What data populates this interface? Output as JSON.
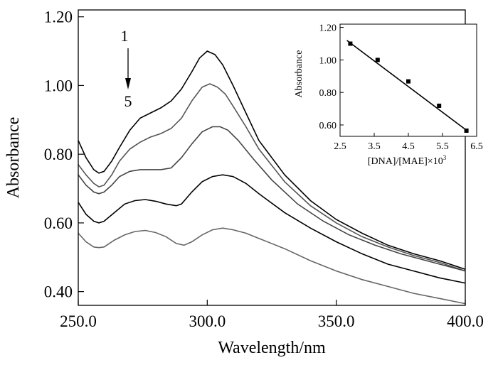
{
  "chart_data": [
    {
      "type": "line",
      "xlabel": "Wavelength/nm",
      "ylabel": "Absorbance",
      "xlim": [
        250,
        400
      ],
      "ylim": [
        0.36,
        1.22
      ],
      "x_ticks": [
        "250.0",
        "300.0",
        "350.0",
        "400.0"
      ],
      "y_ticks": [
        "0.40",
        "0.60",
        "0.80",
        "1.00",
        "1.20"
      ],
      "grid": false,
      "annotation": {
        "start_label": "1",
        "end_label": "5"
      },
      "series": [
        {
          "color": "#000000",
          "points": [
            [
              250,
              0.84
            ],
            [
              253,
              0.79
            ],
            [
              256,
              0.755
            ],
            [
              258,
              0.745
            ],
            [
              260,
              0.75
            ],
            [
              263,
              0.78
            ],
            [
              266,
              0.82
            ],
            [
              270,
              0.87
            ],
            [
              274,
              0.905
            ],
            [
              278,
              0.92
            ],
            [
              282,
              0.935
            ],
            [
              286,
              0.955
            ],
            [
              290,
              0.99
            ],
            [
              294,
              1.04
            ],
            [
              297,
              1.08
            ],
            [
              300,
              1.1
            ],
            [
              303,
              1.09
            ],
            [
              306,
              1.06
            ],
            [
              310,
              1.0
            ],
            [
              315,
              0.92
            ],
            [
              320,
              0.84
            ],
            [
              330,
              0.74
            ],
            [
              340,
              0.665
            ],
            [
              350,
              0.61
            ],
            [
              360,
              0.57
            ],
            [
              370,
              0.535
            ],
            [
              380,
              0.51
            ],
            [
              390,
              0.49
            ],
            [
              400,
              0.465
            ]
          ]
        },
        {
          "color": "#555555",
          "points": [
            [
              250,
              0.77
            ],
            [
              253,
              0.74
            ],
            [
              256,
              0.715
            ],
            [
              258,
              0.705
            ],
            [
              260,
              0.71
            ],
            [
              263,
              0.74
            ],
            [
              266,
              0.78
            ],
            [
              270,
              0.815
            ],
            [
              274,
              0.835
            ],
            [
              278,
              0.85
            ],
            [
              282,
              0.86
            ],
            [
              286,
              0.875
            ],
            [
              290,
              0.905
            ],
            [
              294,
              0.955
            ],
            [
              298,
              0.995
            ],
            [
              301,
              1.005
            ],
            [
              304,
              0.995
            ],
            [
              307,
              0.975
            ],
            [
              310,
              0.94
            ],
            [
              315,
              0.88
            ],
            [
              320,
              0.815
            ],
            [
              330,
              0.72
            ],
            [
              340,
              0.65
            ],
            [
              350,
              0.6
            ],
            [
              360,
              0.56
            ],
            [
              370,
              0.53
            ],
            [
              380,
              0.505
            ],
            [
              390,
              0.485
            ],
            [
              400,
              0.46
            ]
          ]
        },
        {
          "color": "#444444",
          "points": [
            [
              250,
              0.74
            ],
            [
              253,
              0.71
            ],
            [
              256,
              0.69
            ],
            [
              258,
              0.685
            ],
            [
              260,
              0.69
            ],
            [
              263,
              0.71
            ],
            [
              266,
              0.735
            ],
            [
              270,
              0.75
            ],
            [
              274,
              0.755
            ],
            [
              278,
              0.755
            ],
            [
              282,
              0.755
            ],
            [
              286,
              0.76
            ],
            [
              290,
              0.79
            ],
            [
              294,
              0.83
            ],
            [
              298,
              0.865
            ],
            [
              302,
              0.88
            ],
            [
              305,
              0.88
            ],
            [
              308,
              0.87
            ],
            [
              312,
              0.84
            ],
            [
              318,
              0.785
            ],
            [
              325,
              0.725
            ],
            [
              335,
              0.655
            ],
            [
              345,
              0.605
            ],
            [
              355,
              0.565
            ],
            [
              365,
              0.535
            ],
            [
              375,
              0.51
            ],
            [
              385,
              0.49
            ],
            [
              400,
              0.46
            ]
          ]
        },
        {
          "color": "#000000",
          "points": [
            [
              250,
              0.66
            ],
            [
              253,
              0.625
            ],
            [
              256,
              0.605
            ],
            [
              258,
              0.6
            ],
            [
              260,
              0.605
            ],
            [
              264,
              0.63
            ],
            [
              268,
              0.655
            ],
            [
              272,
              0.665
            ],
            [
              276,
              0.668
            ],
            [
              280,
              0.663
            ],
            [
              284,
              0.655
            ],
            [
              288,
              0.65
            ],
            [
              290,
              0.655
            ],
            [
              294,
              0.69
            ],
            [
              298,
              0.72
            ],
            [
              302,
              0.735
            ],
            [
              306,
              0.74
            ],
            [
              310,
              0.735
            ],
            [
              315,
              0.715
            ],
            [
              320,
              0.685
            ],
            [
              330,
              0.63
            ],
            [
              340,
              0.585
            ],
            [
              350,
              0.545
            ],
            [
              360,
              0.51
            ],
            [
              370,
              0.48
            ],
            [
              380,
              0.46
            ],
            [
              390,
              0.44
            ],
            [
              400,
              0.425
            ]
          ]
        },
        {
          "color": "#666666",
          "points": [
            [
              250,
              0.57
            ],
            [
              253,
              0.545
            ],
            [
              256,
              0.53
            ],
            [
              258,
              0.528
            ],
            [
              260,
              0.53
            ],
            [
              264,
              0.55
            ],
            [
              268,
              0.565
            ],
            [
              272,
              0.575
            ],
            [
              276,
              0.578
            ],
            [
              280,
              0.572
            ],
            [
              284,
              0.56
            ],
            [
              288,
              0.54
            ],
            [
              291,
              0.535
            ],
            [
              294,
              0.545
            ],
            [
              298,
              0.565
            ],
            [
              302,
              0.58
            ],
            [
              306,
              0.585
            ],
            [
              310,
              0.58
            ],
            [
              315,
              0.57
            ],
            [
              320,
              0.555
            ],
            [
              330,
              0.525
            ],
            [
              340,
              0.49
            ],
            [
              350,
              0.46
            ],
            [
              360,
              0.435
            ],
            [
              370,
              0.415
            ],
            [
              380,
              0.395
            ],
            [
              390,
              0.38
            ],
            [
              400,
              0.365
            ]
          ]
        }
      ]
    },
    {
      "type": "scatter",
      "xlabel": "[DNA]/[MAE]×10",
      "xlabel_sup": "3",
      "ylabel": "Absorbance",
      "xlim": [
        2.5,
        6.5
      ],
      "ylim": [
        0.53,
        1.22
      ],
      "x_ticks": [
        "2.5",
        "3.5",
        "4.5",
        "5.5",
        "6.5"
      ],
      "y_ticks": [
        "0.60",
        "0.80",
        "1.00",
        "1.20"
      ],
      "points": [
        [
          2.8,
          1.1
        ],
        [
          3.6,
          1.0
        ],
        [
          4.5,
          0.868
        ],
        [
          5.4,
          0.718
        ],
        [
          6.2,
          0.565
        ]
      ],
      "fit_line": [
        [
          2.7,
          1.12
        ],
        [
          6.25,
          0.56
        ]
      ]
    }
  ]
}
